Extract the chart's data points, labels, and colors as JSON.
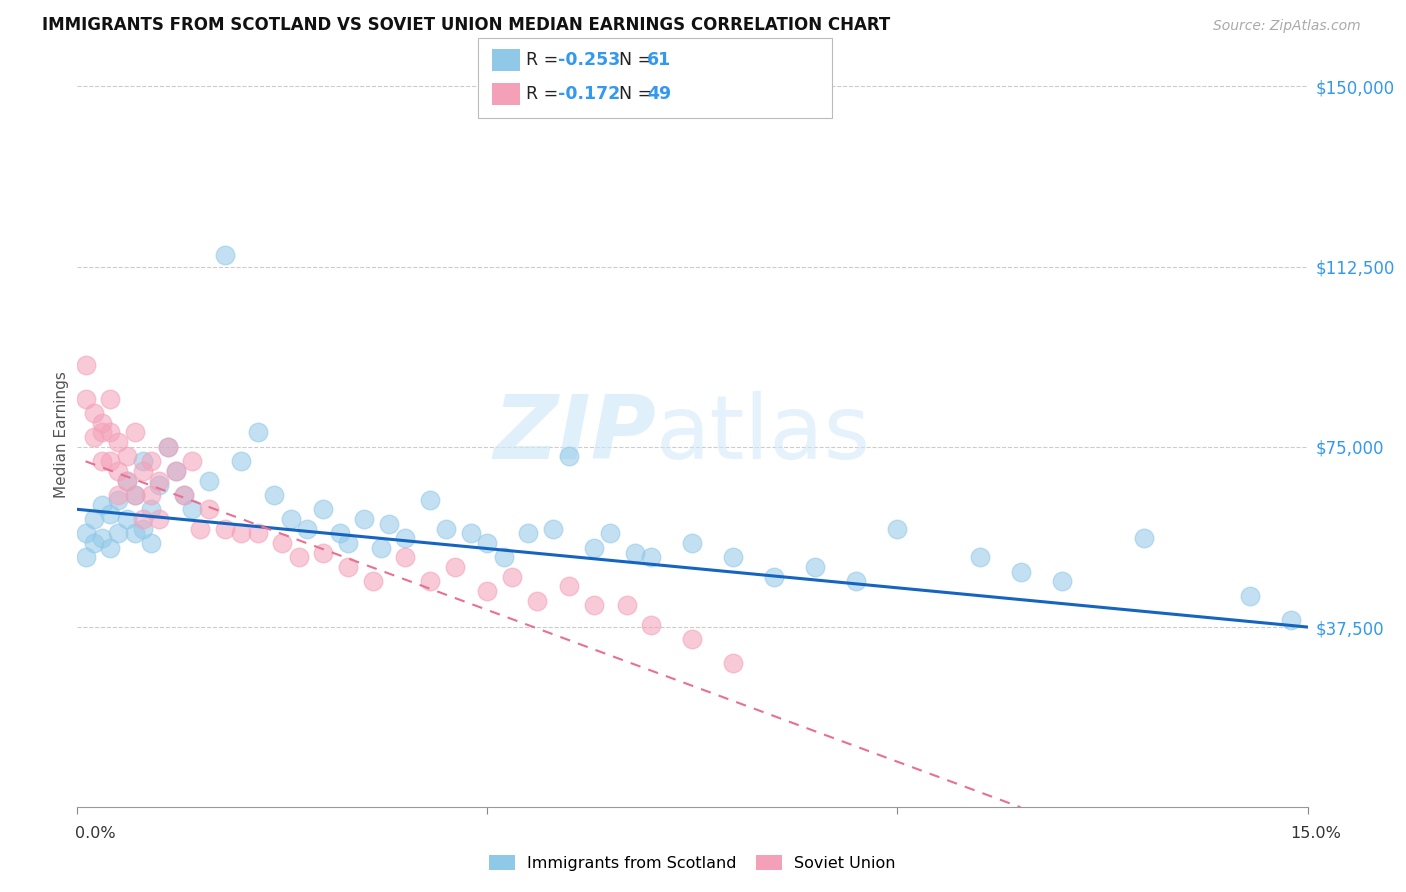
{
  "title": "IMMIGRANTS FROM SCOTLAND VS SOVIET UNION MEDIAN EARNINGS CORRELATION CHART",
  "source": "Source: ZipAtlas.com",
  "ylabel": "Median Earnings",
  "yticks": [
    0,
    37500,
    75000,
    112500,
    150000
  ],
  "ytick_labels": [
    "",
    "$37,500",
    "$75,000",
    "$112,500",
    "$150,000"
  ],
  "xlim": [
    0.0,
    0.15
  ],
  "ylim": [
    0,
    155000
  ],
  "scotland_color": "#90c8e8",
  "soviet_color": "#f4a0b8",
  "trend_scotland_color": "#1565C0",
  "trend_soviet_color": "#e87090",
  "label_color": "#3399ee",
  "scotland_R": "-0.253",
  "scotland_N": "61",
  "soviet_R": "-0.172",
  "soviet_N": "49",
  "watermark_zip": "ZIP",
  "watermark_atlas": "atlas",
  "scotland_x": [
    0.001,
    0.001,
    0.002,
    0.002,
    0.003,
    0.003,
    0.004,
    0.004,
    0.005,
    0.005,
    0.006,
    0.006,
    0.007,
    0.007,
    0.008,
    0.008,
    0.009,
    0.009,
    0.01,
    0.011,
    0.012,
    0.013,
    0.014,
    0.016,
    0.018,
    0.02,
    0.022,
    0.024,
    0.026,
    0.028,
    0.03,
    0.032,
    0.033,
    0.035,
    0.037,
    0.038,
    0.04,
    0.043,
    0.045,
    0.048,
    0.05,
    0.052,
    0.055,
    0.058,
    0.06,
    0.063,
    0.065,
    0.068,
    0.07,
    0.075,
    0.08,
    0.085,
    0.09,
    0.095,
    0.1,
    0.11,
    0.115,
    0.12,
    0.13,
    0.143,
    0.148
  ],
  "scotland_y": [
    57000,
    52000,
    60000,
    55000,
    63000,
    56000,
    61000,
    54000,
    64000,
    57000,
    68000,
    60000,
    65000,
    57000,
    72000,
    58000,
    62000,
    55000,
    67000,
    75000,
    70000,
    65000,
    62000,
    68000,
    115000,
    72000,
    78000,
    65000,
    60000,
    58000,
    62000,
    57000,
    55000,
    60000,
    54000,
    59000,
    56000,
    64000,
    58000,
    57000,
    55000,
    52000,
    57000,
    58000,
    73000,
    54000,
    57000,
    53000,
    52000,
    55000,
    52000,
    48000,
    50000,
    47000,
    58000,
    52000,
    49000,
    47000,
    56000,
    44000,
    39000
  ],
  "soviet_x": [
    0.001,
    0.001,
    0.002,
    0.002,
    0.003,
    0.003,
    0.003,
    0.004,
    0.004,
    0.004,
    0.005,
    0.005,
    0.005,
    0.006,
    0.006,
    0.007,
    0.007,
    0.008,
    0.008,
    0.009,
    0.009,
    0.01,
    0.01,
    0.011,
    0.012,
    0.013,
    0.014,
    0.015,
    0.016,
    0.018,
    0.02,
    0.022,
    0.025,
    0.027,
    0.03,
    0.033,
    0.036,
    0.04,
    0.043,
    0.046,
    0.05,
    0.053,
    0.056,
    0.06,
    0.063,
    0.067,
    0.07,
    0.075,
    0.08
  ],
  "soviet_y": [
    92000,
    85000,
    82000,
    77000,
    80000,
    78000,
    72000,
    85000,
    78000,
    72000,
    76000,
    70000,
    65000,
    73000,
    68000,
    78000,
    65000,
    70000,
    60000,
    72000,
    65000,
    68000,
    60000,
    75000,
    70000,
    65000,
    72000,
    58000,
    62000,
    58000,
    57000,
    57000,
    55000,
    52000,
    53000,
    50000,
    47000,
    52000,
    47000,
    50000,
    45000,
    48000,
    43000,
    46000,
    42000,
    42000,
    38000,
    35000,
    30000
  ],
  "trend_scot_x0": 0.0,
  "trend_scot_x1": 0.15,
  "trend_scot_y0": 62000,
  "trend_scot_y1": 37500,
  "trend_sov_x0": 0.001,
  "trend_sov_x1": 0.115,
  "trend_sov_y0": 72000,
  "trend_sov_y1": 0
}
